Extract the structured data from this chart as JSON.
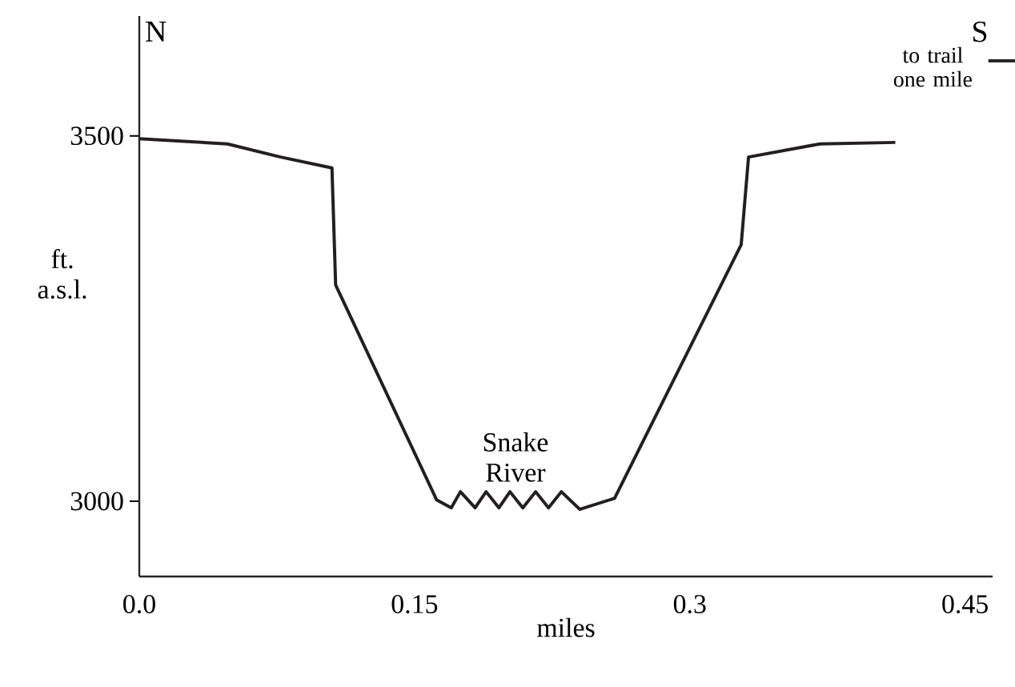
{
  "chart_data": {
    "type": "line",
    "xlabel": "miles",
    "ylabel": "ft. a.s.l.",
    "x": [
      0,
      0.048,
      0.077,
      0.105,
      0.107,
      0.162,
      0.17,
      0.175,
      0.183,
      0.189,
      0.196,
      0.202,
      0.209,
      0.216,
      0.223,
      0.23,
      0.24,
      0.259,
      0.328,
      0.332,
      0.371,
      0.412
    ],
    "series": [
      {
        "color": "#231f20",
        "values": [
          3496,
          3489,
          3471,
          3456,
          3296,
          3002,
          2991,
          3013,
          2991,
          3013,
          2991,
          3013,
          2991,
          3013,
          2991,
          3013,
          2989,
          3004,
          3351,
          3471,
          3489,
          3491
        ]
      }
    ],
    "xlim": [
      0,
      0.465
    ],
    "ylim": [
      2897,
      3664
    ],
    "xticks": [
      {
        "value": 0,
        "label": "0.0"
      },
      0.15,
      0.3,
      0.45
    ],
    "yticks": [
      3000,
      3500
    ],
    "grid": false,
    "marker": "none",
    "line_style": "solid",
    "annotations": [
      "N",
      "S",
      "to trail one mile",
      {
        "text": "Snake River",
        "x": 0.205,
        "y": 3013
      }
    ]
  }
}
